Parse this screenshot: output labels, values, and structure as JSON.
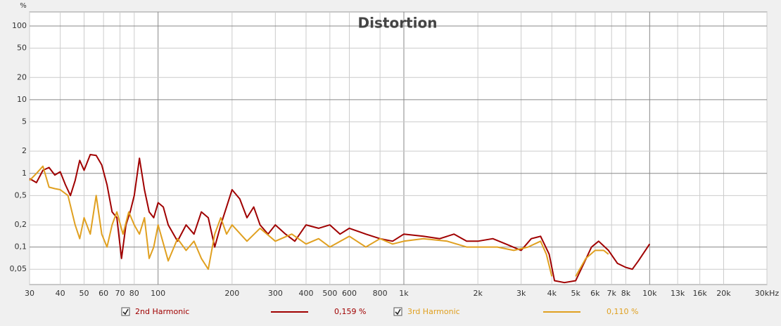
{
  "chart_data": {
    "type": "line",
    "title": "Distortion",
    "y_label": "%",
    "log_x": true,
    "log_y": true,
    "grid": true,
    "xlim": [
      30,
      30000
    ],
    "ylim": [
      0.031,
      155
    ],
    "xticks": [
      30,
      40,
      50,
      60,
      70,
      80,
      100,
      200,
      300,
      400,
      500,
      600,
      800,
      {
        "value": 1000,
        "label": "1k"
      },
      {
        "value": 2000,
        "label": "2k"
      },
      {
        "value": 3000,
        "label": "3k"
      },
      {
        "value": 4000,
        "label": "4k"
      },
      {
        "value": 5000,
        "label": "5k"
      },
      {
        "value": 6000,
        "label": "6k"
      },
      {
        "value": 7000,
        "label": "7k"
      },
      {
        "value": 8000,
        "label": "8k"
      },
      {
        "value": 10000,
        "label": "10k"
      },
      {
        "value": 13000,
        "label": "13k"
      },
      {
        "value": 16000,
        "label": "16k"
      },
      {
        "value": 20000,
        "label": "20k"
      },
      {
        "value": 30000,
        "label": "30kHz"
      }
    ],
    "yticks": [
      100,
      50,
      20,
      10,
      5,
      2,
      1,
      {
        "value": 0.5,
        "label": "0,5"
      },
      {
        "value": 0.2,
        "label": "0,2"
      },
      {
        "value": 0.1,
        "label": "0,1"
      },
      {
        "value": 0.05,
        "label": "0,05"
      }
    ],
    "series": [
      {
        "name": "2nd Harmonic",
        "color": "#a00000",
        "legend_value": "0,159 %",
        "x": [
          30,
          32,
          34,
          36,
          38,
          40,
          42,
          44,
          46,
          48,
          50,
          53,
          56,
          59,
          62,
          65,
          68,
          71,
          74,
          77,
          80,
          84,
          88,
          92,
          96,
          100,
          105,
          110,
          120,
          130,
          140,
          150,
          160,
          170,
          180,
          190,
          200,
          215,
          230,
          245,
          260,
          280,
          300,
          330,
          360,
          400,
          450,
          500,
          550,
          600,
          700,
          800,
          900,
          1000,
          1200,
          1400,
          1600,
          1800,
          2000,
          2300,
          2600,
          3000,
          3300,
          3600,
          3900,
          4100,
          4500,
          5000,
          5400,
          5800,
          6200,
          6800,
          7400,
          8000,
          8500,
          9000,
          10000
        ],
        "values": [
          0.85,
          0.75,
          1.1,
          1.2,
          0.95,
          1.05,
          0.7,
          0.5,
          0.8,
          1.5,
          1.1,
          1.8,
          1.75,
          1.3,
          0.7,
          0.3,
          0.25,
          0.07,
          0.2,
          0.3,
          0.5,
          1.6,
          0.6,
          0.3,
          0.25,
          0.4,
          0.35,
          0.2,
          0.12,
          0.2,
          0.15,
          0.3,
          0.25,
          0.1,
          0.2,
          0.35,
          0.6,
          0.45,
          0.25,
          0.35,
          0.2,
          0.15,
          0.2,
          0.15,
          0.12,
          0.2,
          0.18,
          0.2,
          0.15,
          0.18,
          0.15,
          0.13,
          0.12,
          0.15,
          0.14,
          0.13,
          0.15,
          0.12,
          0.12,
          0.13,
          0.11,
          0.09,
          0.13,
          0.14,
          0.08,
          0.035,
          0.033,
          0.035,
          0.06,
          0.1,
          0.12,
          0.09,
          0.06,
          0.053,
          0.05,
          0.065,
          0.11
        ]
      },
      {
        "name": "3rd Harmonic",
        "color": "#e0a020",
        "legend_value": "0,110 %",
        "x": [
          30,
          32,
          34,
          36,
          38,
          40,
          43,
          46,
          48,
          50,
          53,
          56,
          59,
          62,
          65,
          68,
          72,
          76,
          80,
          84,
          88,
          92,
          96,
          100,
          110,
          120,
          130,
          140,
          150,
          160,
          170,
          180,
          190,
          200,
          230,
          260,
          300,
          350,
          400,
          450,
          500,
          600,
          700,
          800,
          900,
          1000,
          1200,
          1500,
          1800,
          2000,
          2400,
          2800,
          3200,
          3600,
          3800,
          4000,
          4200,
          4700,
          5000,
          5500,
          6000,
          6500,
          6800
        ],
        "values": [
          0.8,
          1.0,
          1.25,
          0.65,
          0.62,
          0.6,
          0.5,
          0.2,
          0.13,
          0.25,
          0.15,
          0.5,
          0.15,
          0.1,
          0.2,
          0.3,
          0.15,
          0.3,
          0.2,
          0.15,
          0.25,
          0.07,
          0.1,
          0.2,
          0.065,
          0.13,
          0.09,
          0.12,
          0.07,
          0.05,
          0.15,
          0.25,
          0.15,
          0.2,
          0.12,
          0.18,
          0.12,
          0.15,
          0.11,
          0.13,
          0.1,
          0.14,
          0.1,
          0.13,
          0.11,
          0.12,
          0.13,
          0.12,
          0.1,
          0.1,
          0.1,
          0.09,
          0.1,
          0.12,
          0.08,
          0.04,
          null,
          null,
          0.04,
          0.07,
          0.09,
          0.09,
          0.08
        ]
      }
    ]
  }
}
